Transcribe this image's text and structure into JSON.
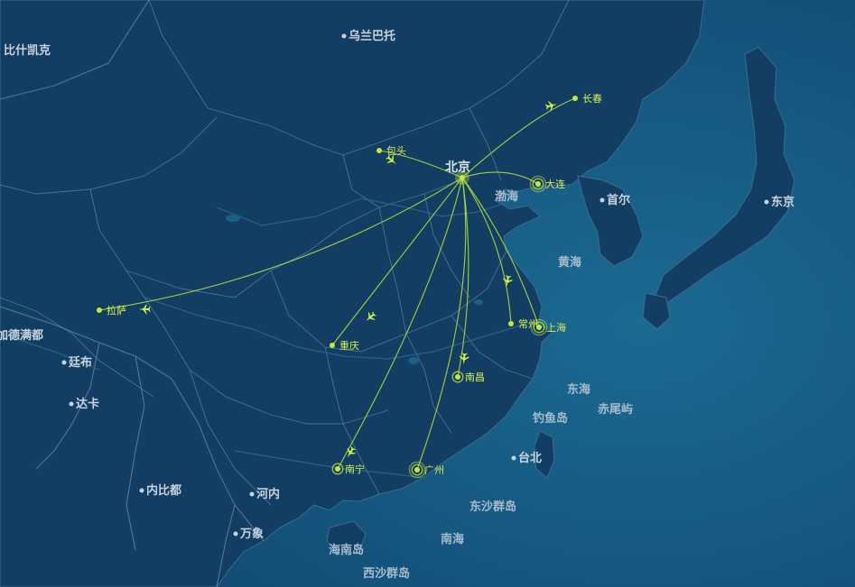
{
  "colors": {
    "ocean": "#14577e",
    "land": "#123e63",
    "route": "#b8de3c",
    "city_label": "#d7ef55",
    "base_label": "#c9d3de"
  },
  "map": {
    "origin": "北京",
    "base_labels": [
      {
        "name": "乌兰巴托"
      },
      {
        "name": "比什凯克"
      },
      {
        "name": "首尔"
      },
      {
        "name": "东京"
      },
      {
        "name": "加德满都"
      },
      {
        "name": "廷布"
      },
      {
        "name": "达卡"
      },
      {
        "name": "内比都"
      },
      {
        "name": "河内"
      },
      {
        "name": "万象"
      },
      {
        "name": "台北"
      }
    ],
    "sea_labels": [
      {
        "name": "渤海"
      },
      {
        "name": "黄海"
      },
      {
        "name": "东海"
      },
      {
        "name": "钓鱼岛"
      },
      {
        "name": "赤尾屿"
      },
      {
        "name": "东沙群岛"
      },
      {
        "name": "南海"
      },
      {
        "name": "海南岛"
      },
      {
        "name": "西沙群岛"
      }
    ],
    "destinations": [
      {
        "name": "长春",
        "rings": 0
      },
      {
        "name": "包头",
        "rings": 0
      },
      {
        "name": "大连",
        "rings": 2
      },
      {
        "name": "拉萨",
        "rings": 0
      },
      {
        "name": "常州",
        "rings": 0
      },
      {
        "name": "上海",
        "rings": 2
      },
      {
        "name": "重庆",
        "rings": 0
      },
      {
        "name": "南昌",
        "rings": 1
      },
      {
        "name": "南宁",
        "rings": 1
      },
      {
        "name": "广州",
        "rings": 2
      }
    ]
  }
}
